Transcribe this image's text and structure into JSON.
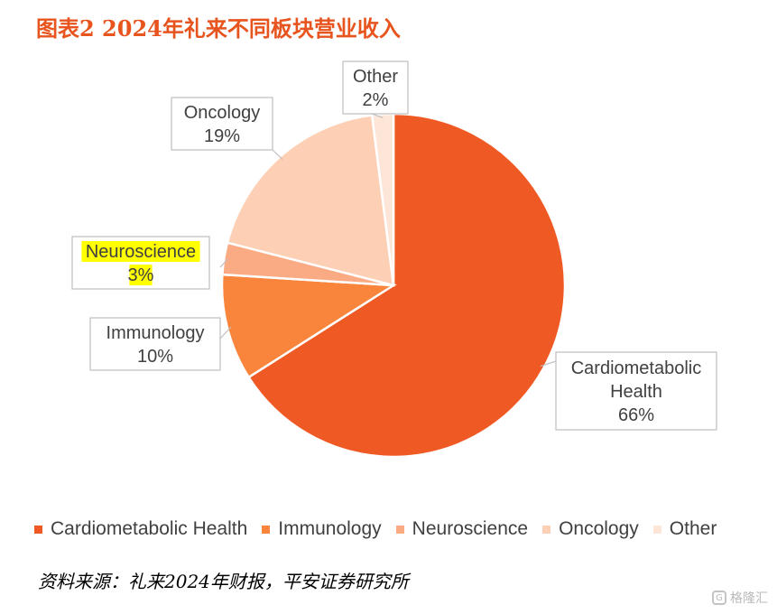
{
  "title": "图表2 2024年礼来不同板块营业收入",
  "chart_data": {
    "type": "pie",
    "slices": [
      {
        "name": "Cardiometabolic Health",
        "label_lines": [
          "Cardiometabolic",
          "Health",
          "66%"
        ],
        "value": 66,
        "color": "#ef5a24"
      },
      {
        "name": "Immunology",
        "label_lines": [
          "Immunology",
          "10%"
        ],
        "value": 10,
        "color": "#f9853c"
      },
      {
        "name": "Neuroscience",
        "label_lines": [
          "Neuroscience",
          "3%"
        ],
        "value": 3,
        "color": "#fbab84",
        "highlighted": true
      },
      {
        "name": "Oncology",
        "label_lines": [
          "Oncology",
          "19%"
        ],
        "value": 19,
        "color": "#fdd0b5"
      },
      {
        "name": "Other",
        "label_lines": [
          "Other",
          "2%"
        ],
        "value": 2,
        "color": "#fde5d8"
      }
    ],
    "start_angle": "12 o'clock",
    "direction": "clockwise",
    "legend": {
      "position": "bottom",
      "items": [
        "Cardiometabolic Health",
        "Immunology",
        "Neuroscience",
        "Oncology",
        "Other"
      ]
    },
    "highlight_color": "#ffff00"
  },
  "source": "资料来源：礼来2024年财报，平安证券研究所",
  "watermark": {
    "text": "格隆汇",
    "icon": "watermark-logo-icon"
  }
}
